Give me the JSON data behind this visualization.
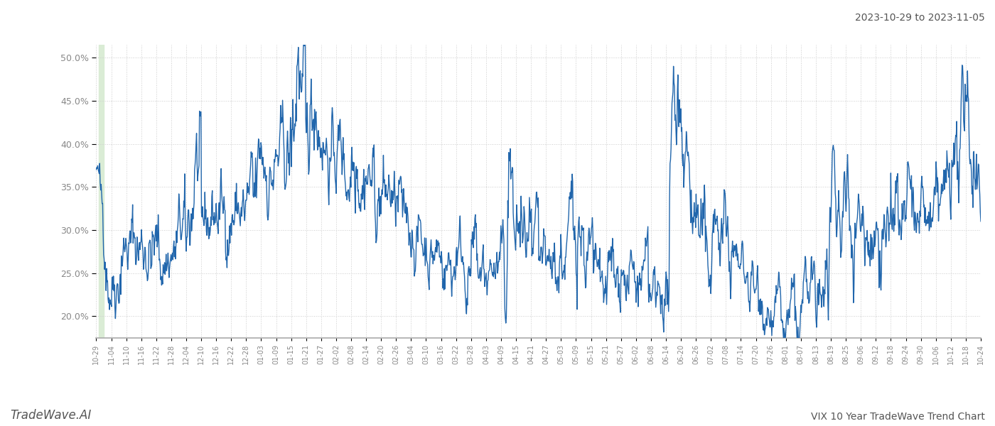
{
  "title_bottom_right": "VIX 10 Year TradeWave Trend Chart",
  "title_top_right": "2023-10-29 to 2023-11-05",
  "watermark_bottom_left": "TradeWave.AI",
  "line_color": "#2166ac",
  "bg_color": "#ffffff",
  "grid_color": "#cccccc",
  "shaded_region_color": "#daecd5",
  "y_min": 0.175,
  "y_max": 0.515,
  "y_ticks": [
    0.2,
    0.25,
    0.3,
    0.35,
    0.4,
    0.45,
    0.5
  ],
  "x_tick_labels": [
    "10-29",
    "11-04",
    "11-10",
    "11-16",
    "11-22",
    "11-28",
    "12-04",
    "12-10",
    "12-16",
    "12-22",
    "12-28",
    "01-03",
    "01-09",
    "01-15",
    "01-21",
    "01-27",
    "02-02",
    "02-08",
    "02-14",
    "02-20",
    "02-26",
    "03-04",
    "03-10",
    "03-16",
    "03-22",
    "03-28",
    "04-03",
    "04-09",
    "04-15",
    "04-21",
    "04-27",
    "05-03",
    "05-09",
    "05-15",
    "05-21",
    "05-27",
    "06-02",
    "06-08",
    "06-14",
    "06-20",
    "06-26",
    "07-02",
    "07-08",
    "07-14",
    "07-20",
    "07-26",
    "08-01",
    "08-07",
    "08-13",
    "08-19",
    "08-25",
    "09-06",
    "09-12",
    "09-18",
    "09-24",
    "09-30",
    "10-06",
    "10-12",
    "10-18",
    "10-24"
  ],
  "line_width": 1.0,
  "font_color": "#888888",
  "font_size_ticks": 7,
  "font_size_title": 10,
  "font_size_watermark": 12
}
